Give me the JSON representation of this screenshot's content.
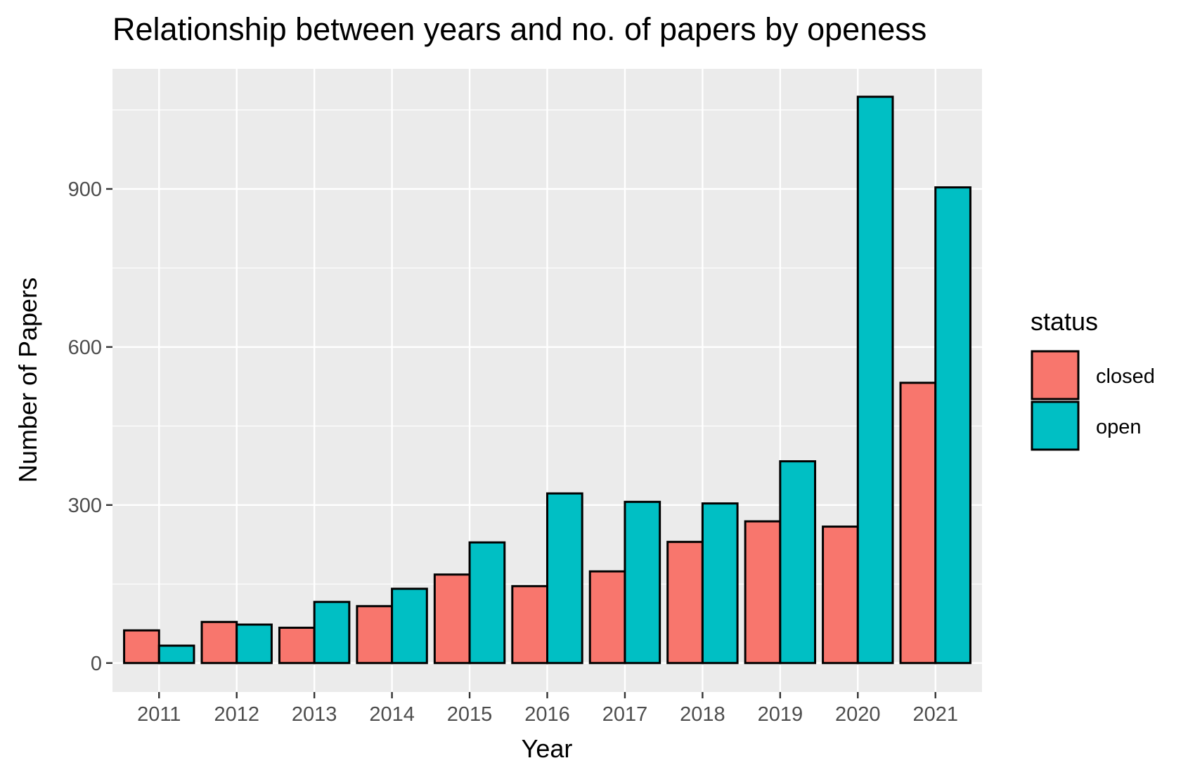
{
  "chart_data": {
    "type": "bar",
    "title": "Relationship between years and no. of papers by openess",
    "xlabel": "Year",
    "ylabel": "Number of Papers",
    "categories": [
      "2011",
      "2012",
      "2013",
      "2014",
      "2015",
      "2016",
      "2017",
      "2018",
      "2019",
      "2020",
      "2021"
    ],
    "series": [
      {
        "name": "closed",
        "color": "#F8766D",
        "values": [
          62,
          78,
          67,
          108,
          168,
          146,
          174,
          230,
          269,
          259,
          532
        ]
      },
      {
        "name": "open",
        "color": "#00BFC4",
        "values": [
          33,
          73,
          116,
          141,
          229,
          322,
          306,
          303,
          383,
          1075,
          903
        ]
      }
    ],
    "ylim": [
      -55,
      1128
    ],
    "yticks": [
      0,
      300,
      600,
      900
    ],
    "grid": true,
    "panel_background": "#EBEBEB",
    "legend": {
      "title": "status",
      "position": "right",
      "entries": [
        "closed",
        "open"
      ]
    }
  }
}
